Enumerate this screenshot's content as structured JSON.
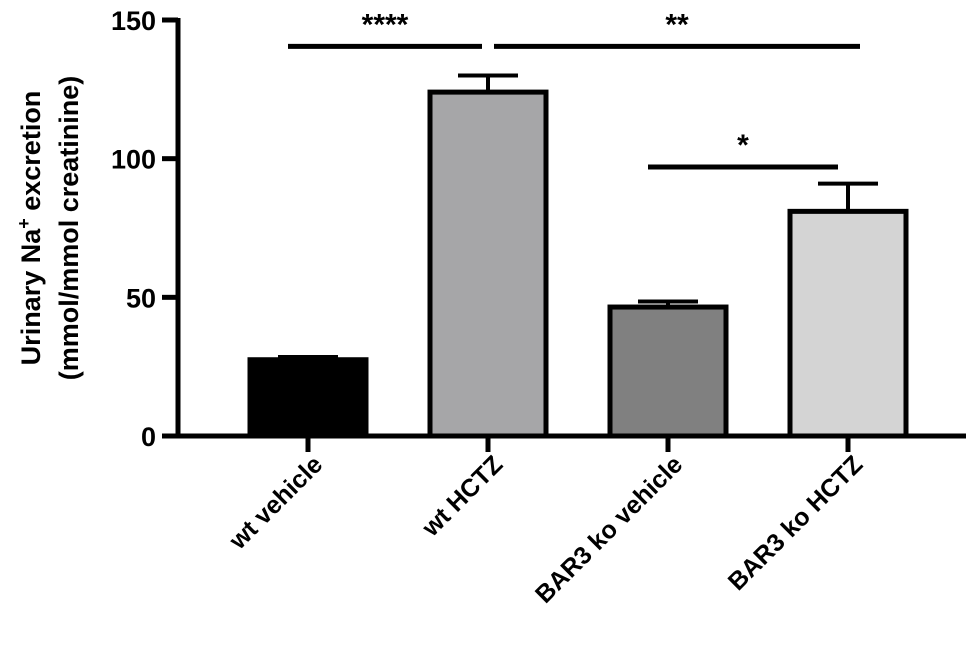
{
  "chart_data": {
    "type": "bar",
    "categories": [
      "wt vehicle",
      "wt HCTZ",
      "BAR3 ko vehicle",
      "BAR3 ko HCTZ"
    ],
    "values": [
      27.5,
      124,
      46.5,
      81
    ],
    "errors": [
      1.0,
      6.0,
      2.0,
      10.0
    ],
    "bar_colors": [
      "#000000",
      "#a6a6a8",
      "#808080",
      "#d4d4d4"
    ],
    "ylabel_line1": "Urinary Na",
    "ylabel_sup": "+",
    "ylabel_line1_end": " excretion",
    "ylabel_line2": "(mmol/mmol creatinine)",
    "ylim": [
      0,
      150
    ],
    "yticks": [
      "0",
      "50",
      "100",
      "150"
    ],
    "significance": [
      {
        "from": 0,
        "to": 1,
        "label": "****",
        "y": 140.5
      },
      {
        "from": 1,
        "to": 3,
        "label": "**",
        "y": 140.5
      },
      {
        "from": 2,
        "to": 3,
        "label": "*",
        "y": 97
      }
    ]
  }
}
